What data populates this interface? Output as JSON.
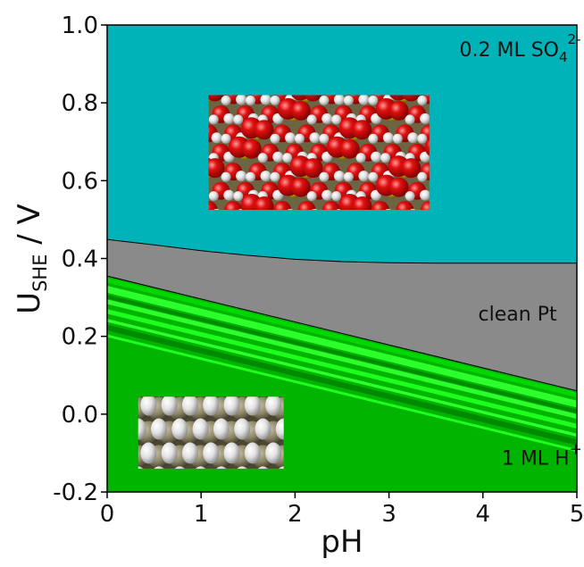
{
  "chart_data": {
    "type": "area",
    "xlabel": "pH",
    "ylabel": "U",
    "ylabel_subscript": "SHE",
    "ylabel_suffix": " / V",
    "xlim": [
      0,
      5
    ],
    "ylim": [
      -0.2,
      1.0
    ],
    "xticks": [
      0,
      1,
      2,
      3,
      4,
      5
    ],
    "yticks": [
      -0.2,
      0.0,
      0.2,
      0.4,
      0.6,
      0.8,
      1.0
    ],
    "xtick_labels": [
      "0",
      "1",
      "2",
      "3",
      "4",
      "5"
    ],
    "ytick_labels": [
      "-0.2",
      "0.0",
      "0.2",
      "0.4",
      "0.6",
      "0.8",
      "1.0"
    ],
    "grid": false,
    "regions": [
      {
        "label_main": "0.2 ML SO",
        "label_sub": "4",
        "label_sup": "2-",
        "color": "#00b3b8",
        "label_at": [
          3.75,
          0.92
        ]
      },
      {
        "label_main": "clean Pt",
        "label_sub": "",
        "label_sup": "",
        "color": "#8a8a8a",
        "label_at": [
          3.95,
          0.24
        ]
      },
      {
        "label_main": "1 ML H",
        "label_sub": "",
        "label_sup": "+",
        "color": "#00b400",
        "label_at": [
          4.2,
          -0.13
        ]
      }
    ],
    "boundaries": {
      "sulfate_clean": {
        "x": [
          0,
          0.5,
          1,
          1.5,
          2,
          2.5,
          3,
          3.5,
          4,
          4.5,
          5
        ],
        "y": [
          0.449,
          0.435,
          0.42,
          0.408,
          0.398,
          0.392,
          0.389,
          0.388,
          0.388,
          0.388,
          0.388
        ]
      },
      "clean_hydrogen": {
        "x": [
          0,
          5
        ],
        "y": [
          0.355,
          0.06
        ]
      }
    },
    "hydrogen_bands": [
      {
        "offset": -0.005,
        "width": 0.012,
        "color": "#00d800"
      },
      {
        "offset": -0.025,
        "width": 0.018,
        "color": "#2cff2c"
      },
      {
        "offset": -0.048,
        "width": 0.01,
        "color": "#008a00"
      },
      {
        "offset": -0.06,
        "width": 0.012,
        "color": "#2cff2c"
      },
      {
        "offset": -0.085,
        "width": 0.012,
        "color": "#1dff1d"
      },
      {
        "offset": -0.11,
        "width": 0.008,
        "color": "#2cff2c"
      },
      {
        "offset": -0.125,
        "width": 0.015,
        "color": "#008a00"
      },
      {
        "offset": -0.15,
        "width": 0.007,
        "color": "#1dff1d"
      }
    ],
    "insets": [
      {
        "name": "sulfate-structure-image",
        "x_range": [
          1.08,
          3.43
        ],
        "y_range": [
          0.525,
          0.82
        ],
        "kind": "sulfate"
      },
      {
        "name": "hydrogen-structure-image",
        "x_range": [
          0.33,
          1.88
        ],
        "y_range": [
          -0.14,
          0.045
        ],
        "kind": "hydrogen"
      }
    ]
  }
}
